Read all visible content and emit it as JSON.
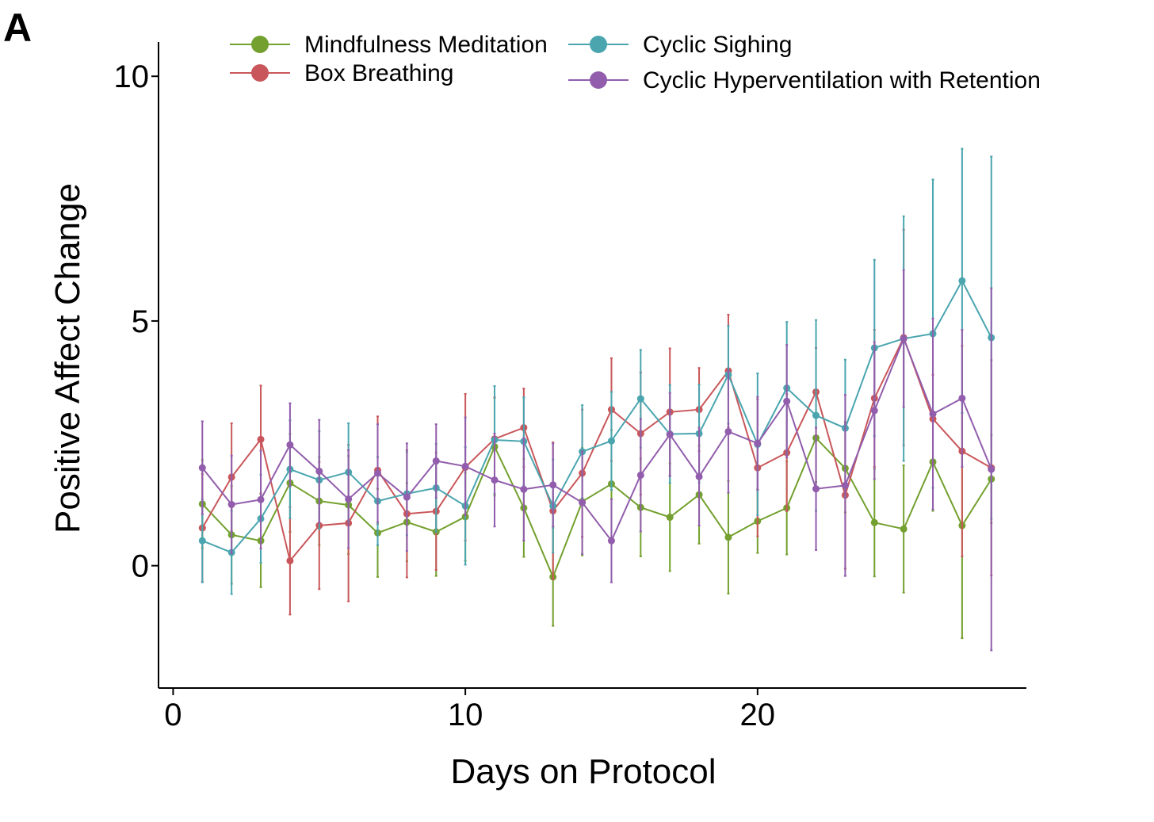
{
  "panel_label": "A",
  "chart_data": {
    "type": "line",
    "title": "",
    "xlabel": "Days on Protocol",
    "ylabel": "Positive Affect Change",
    "xlim": [
      -0.5,
      29.2
    ],
    "ylim": [
      -2.5,
      10.7
    ],
    "xticks": [
      0,
      10,
      20
    ],
    "yticks": [
      0,
      5,
      10
    ],
    "grid": false,
    "legend_position": "top",
    "x": [
      1,
      2,
      3,
      4,
      5,
      6,
      7,
      8,
      9,
      10,
      11,
      12,
      13,
      14,
      15,
      16,
      17,
      18,
      19,
      20,
      21,
      22,
      23,
      24,
      25,
      26,
      27,
      28
    ],
    "series": [
      {
        "name": "Mindfulness Meditation",
        "color": "#73A02E",
        "values": [
          1.26,
          0.63,
          0.51,
          1.69,
          1.32,
          1.24,
          0.67,
          0.89,
          0.69,
          1.0,
          2.43,
          1.18,
          -0.23,
          1.31,
          1.67,
          1.19,
          0.99,
          1.45,
          0.58,
          0.91,
          1.18,
          2.61,
          1.99,
          0.88,
          0.75,
          2.12,
          0.82,
          1.77
        ],
        "err": [
          0.9,
          1.0,
          0.95,
          1.0,
          0.9,
          1.0,
          0.9,
          0.8,
          0.9,
          0.9,
          1.0,
          1.0,
          1.0,
          1.1,
          1.1,
          1.0,
          1.1,
          1.0,
          1.15,
          0.65,
          0.95,
          0.9,
          0.9,
          1.1,
          1.3,
          1.0,
          2.3,
          0.9
        ]
      },
      {
        "name": "Box Breathing",
        "color": "#C9565A",
        "values": [
          0.77,
          1.81,
          2.58,
          0.1,
          0.82,
          0.87,
          1.95,
          1.06,
          1.11,
          2.01,
          2.59,
          2.82,
          1.12,
          1.89,
          3.19,
          2.7,
          3.14,
          3.19,
          3.98,
          2.0,
          2.31,
          3.55,
          1.44,
          3.42,
          4.66,
          3.0,
          2.34,
          2.0
        ],
        "err": [
          1.1,
          1.1,
          1.1,
          1.1,
          1.3,
          1.6,
          1.1,
          1.3,
          1.2,
          1.5,
          0.85,
          0.8,
          1.4,
          1.3,
          1.05,
          1.25,
          1.3,
          0.85,
          1.15,
          1.4,
          1.2,
          0.9,
          1.5,
          1.4,
          2.2,
          0.9,
          2.15,
          2.2
        ]
      },
      {
        "name": "Cyclic Sighing",
        "color": "#4AA5AF",
        "values": [
          0.51,
          0.27,
          0.96,
          1.97,
          1.75,
          1.91,
          1.32,
          1.47,
          1.59,
          1.22,
          2.57,
          2.54,
          1.22,
          2.33,
          2.55,
          3.41,
          2.69,
          2.7,
          3.9,
          2.48,
          3.63,
          3.07,
          2.81,
          4.45,
          4.64,
          4.74,
          5.82,
          4.66
        ],
        "err": [
          0.85,
          0.85,
          0.9,
          1.0,
          1.0,
          1.0,
          0.9,
          0.85,
          0.9,
          1.2,
          1.1,
          0.9,
          0.95,
          0.95,
          1.0,
          1.0,
          1.0,
          1.0,
          1.0,
          1.45,
          1.35,
          1.95,
          1.4,
          1.8,
          2.5,
          3.15,
          2.7,
          3.7
        ]
      },
      {
        "name": "Cyclic Hyperventilation with Retention",
        "color": "#915DAC",
        "values": [
          2.0,
          1.25,
          1.35,
          2.47,
          1.93,
          1.36,
          1.89,
          1.4,
          2.14,
          2.03,
          1.75,
          1.56,
          1.65,
          1.29,
          0.51,
          1.85,
          2.68,
          1.82,
          2.74,
          2.5,
          3.36,
          1.57,
          1.64,
          3.17,
          4.64,
          3.1,
          3.42,
          1.97
        ],
        "err": [
          0.95,
          1.0,
          1.0,
          0.85,
          1.05,
          1.0,
          1.0,
          1.1,
          0.75,
          1.0,
          0.95,
          1.05,
          0.85,
          1.05,
          0.85,
          1.15,
          0.85,
          1.0,
          1.25,
          0.95,
          1.15,
          1.25,
          1.85,
          1.4,
          1.4,
          1.95,
          1.4,
          3.7
        ]
      }
    ]
  }
}
